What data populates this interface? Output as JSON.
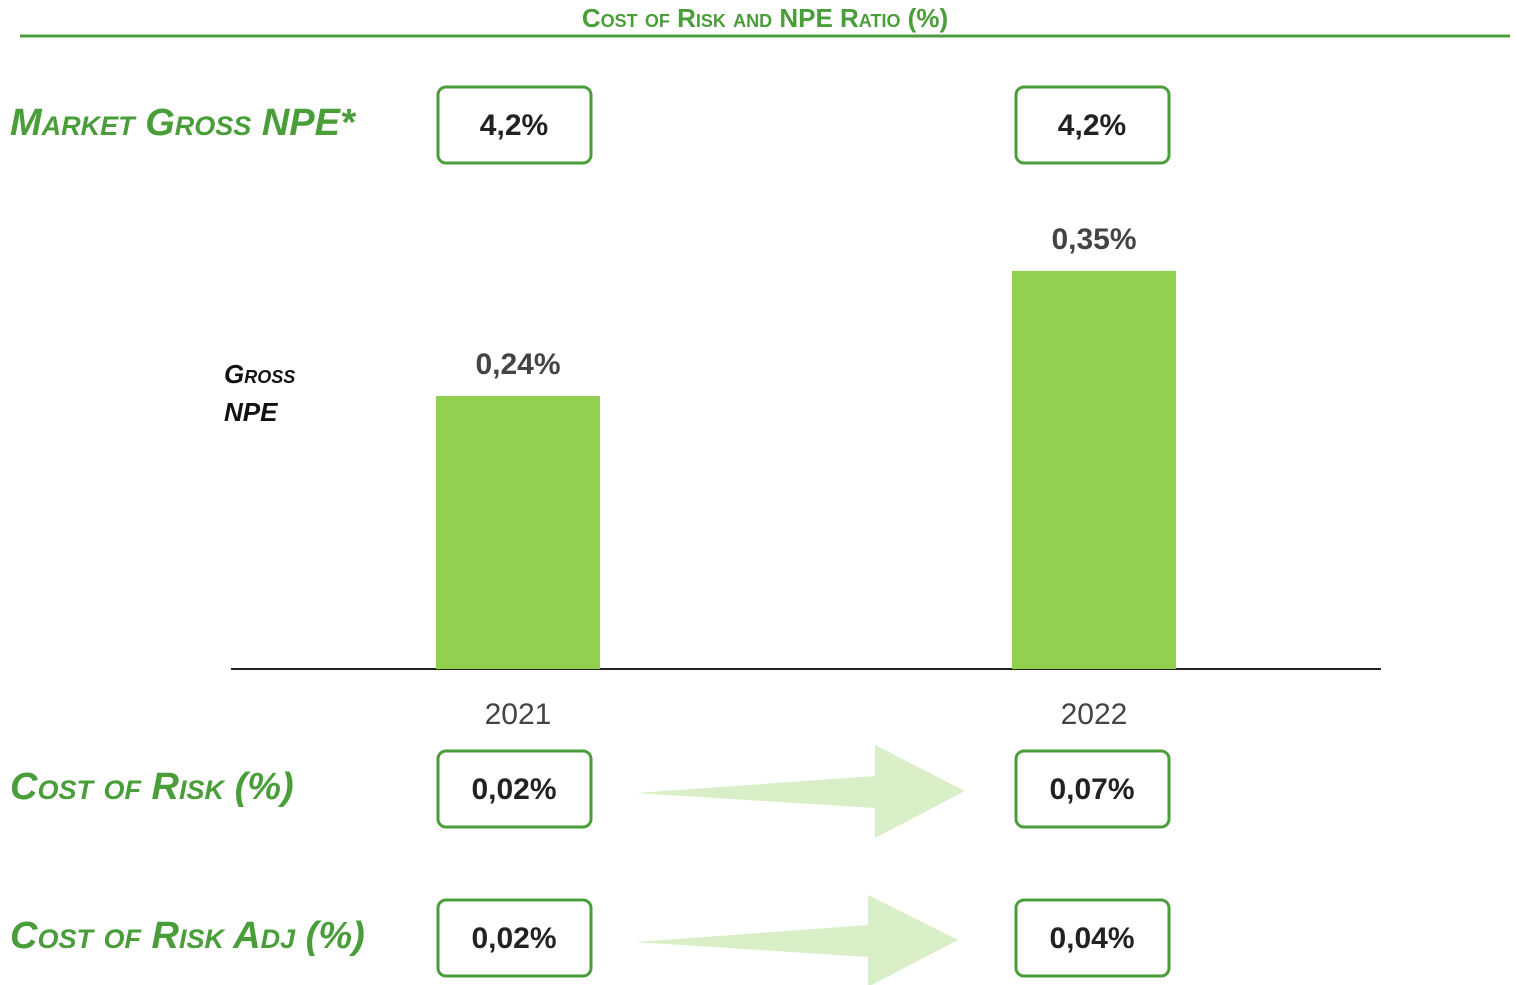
{
  "chart_data": {
    "type": "bar",
    "title": "Cost of Risk and NPE Ratio (%)",
    "y_label": [
      "Gross",
      "NPE"
    ],
    "categories": [
      "2021",
      "2022"
    ],
    "values": [
      0.24,
      0.35
    ],
    "value_labels": [
      "0,24%",
      "0,35%"
    ],
    "color": "#92d050",
    "ylim": [
      0,
      0.4
    ]
  },
  "rows": [
    {
      "label": "Market Gross NPE*",
      "values": [
        "4,2%",
        "4,2%"
      ]
    },
    {
      "label": "Cost of Risk (%)",
      "values": [
        "0,02%",
        "0,07%"
      ]
    },
    {
      "label": "Cost of Risk Adj (%)",
      "values": [
        "0,02%",
        "0,04%"
      ]
    }
  ]
}
